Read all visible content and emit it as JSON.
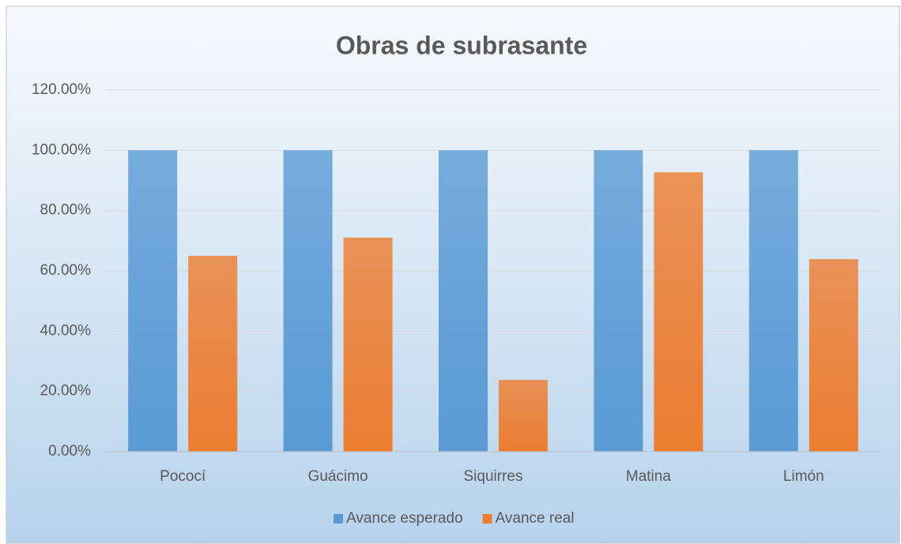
{
  "chart_data": {
    "type": "bar",
    "title": "Obras de subrasante",
    "categories": [
      "Pococí",
      "Guácimo",
      "Siquirres",
      "Matina",
      "Limón"
    ],
    "series": [
      {
        "name": "Avance esperado",
        "color": "#5b9bd5",
        "values": [
          100,
          100,
          100,
          100,
          100
        ]
      },
      {
        "name": "Avance real",
        "color": "#ed7d31",
        "values": [
          65.0,
          71.0,
          23.8,
          92.7,
          63.9
        ]
      }
    ],
    "ylim": [
      0,
      120
    ],
    "yticks": [
      {
        "value": 0,
        "label": "0.00%"
      },
      {
        "value": 20,
        "label": "20.00%"
      },
      {
        "value": 40,
        "label": "40.00%"
      },
      {
        "value": 60,
        "label": "60.00%"
      },
      {
        "value": 80,
        "label": "80.00%"
      },
      {
        "value": 100,
        "label": "100.00%"
      },
      {
        "value": 120,
        "label": "120.00%"
      }
    ],
    "grid": true,
    "legend": "bottom"
  }
}
